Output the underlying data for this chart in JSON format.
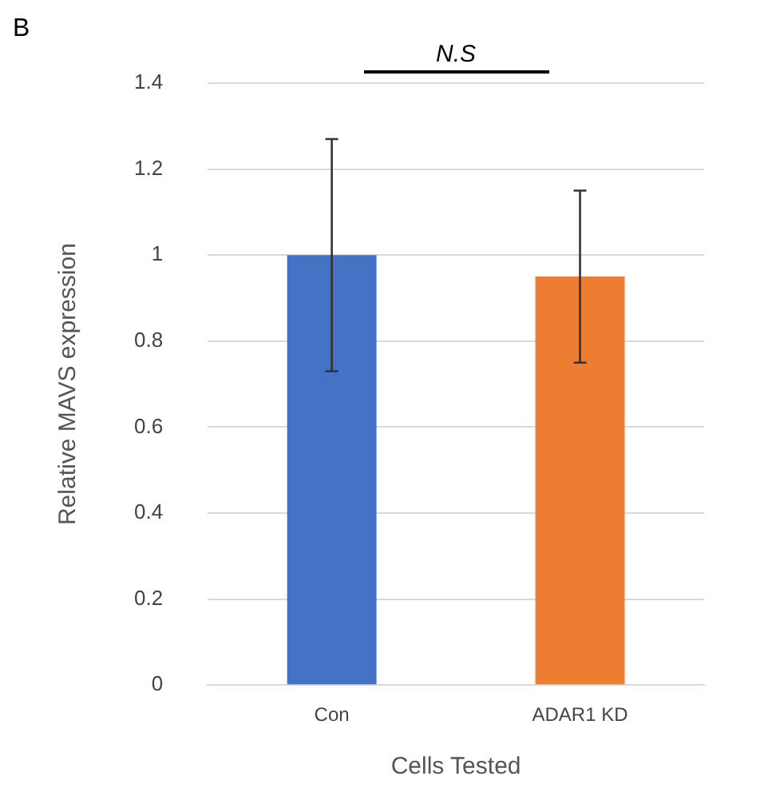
{
  "chart_data": {
    "type": "bar",
    "categories": [
      "Con",
      "ADAR1 KD"
    ],
    "values": [
      1.0,
      0.95
    ],
    "errors": [
      0.27,
      0.2
    ],
    "colors": [
      "#4472c4",
      "#ed7d31"
    ],
    "xlabel": "Cells Tested",
    "ylabel": "Relative MAVS expression",
    "ylim": [
      0,
      1.4
    ],
    "yticks": [
      0,
      0.2,
      0.4,
      0.6,
      0.8,
      1,
      1.2,
      1.4
    ],
    "grid": "y",
    "legend": false,
    "annotations": [
      "B",
      "N.S"
    ]
  }
}
